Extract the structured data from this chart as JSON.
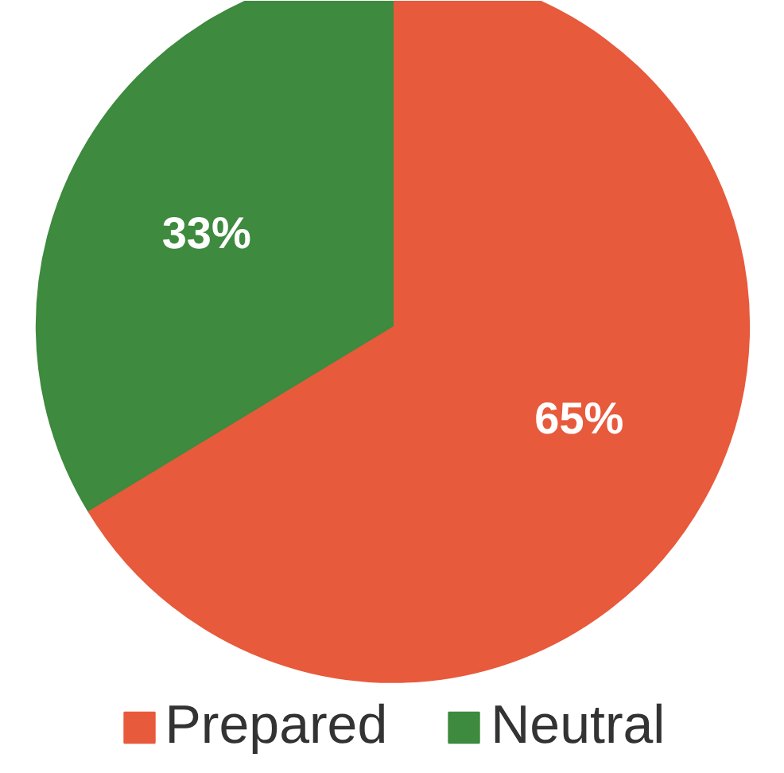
{
  "chart_data": {
    "type": "pie",
    "categories": [
      "Prepared",
      "Neutral"
    ],
    "values": [
      65,
      33
    ],
    "colors": [
      "#e85a3c",
      "#3e8a3e"
    ],
    "value_labels": [
      "65%",
      "33%"
    ],
    "legend": "bottom"
  }
}
